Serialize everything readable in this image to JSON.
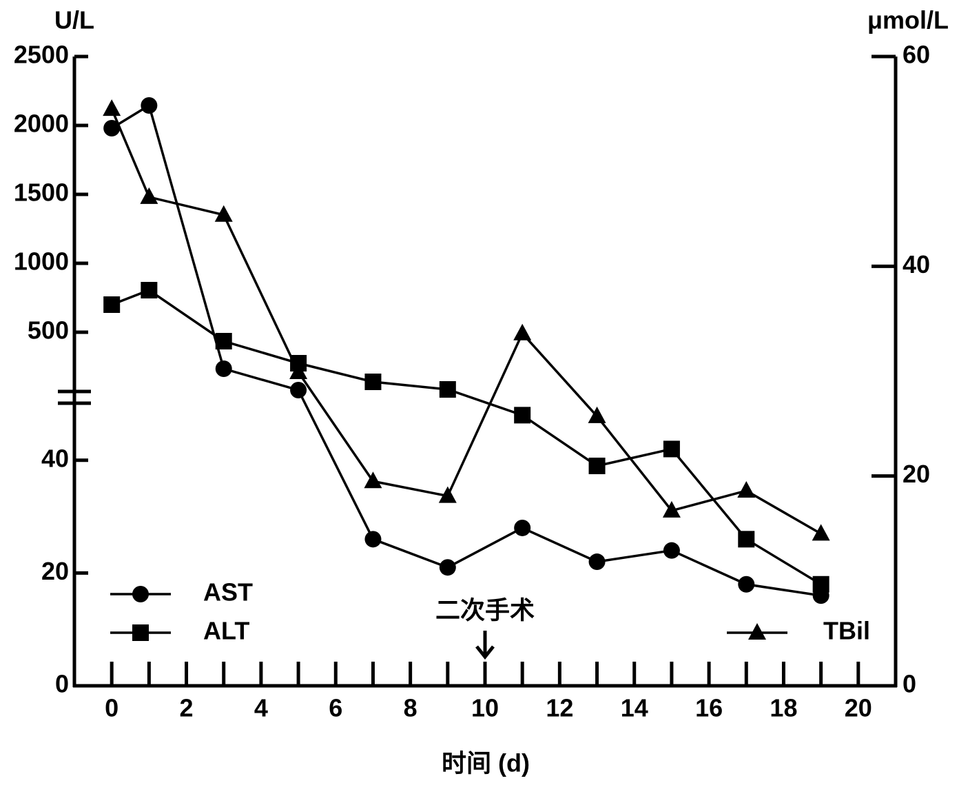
{
  "chart_data": {
    "type": "line",
    "y_title": "U/L",
    "y2_title": "μmol/L",
    "x_title": "时间 (d)",
    "annotation": {
      "text": "二次手术",
      "x": 10
    },
    "x": [
      0,
      1,
      3,
      5,
      7,
      9,
      11,
      13,
      15,
      17,
      19
    ],
    "xlim": [
      -1,
      21
    ],
    "xticks": [
      0,
      2,
      4,
      6,
      8,
      10,
      12,
      14,
      16,
      18,
      20
    ],
    "ylim_segments": [
      {
        "ylim": [
          0,
          50
        ],
        "yticks": [
          0,
          20,
          40
        ]
      },
      {
        "ylim": [
          50,
          2500
        ],
        "yticks": [
          500,
          1000,
          1500,
          2000,
          2500
        ]
      }
    ],
    "y2lim": [
      0,
      60
    ],
    "y2ticks": [
      0,
      20,
      40,
      60
    ],
    "series": [
      {
        "name": "AST",
        "color": "#000000",
        "marker": "circle",
        "legend": "left",
        "values": [
          1980,
          2145,
          235,
          80,
          26,
          21,
          28,
          22,
          24,
          18,
          16
        ]
      },
      {
        "name": "ALT",
        "color": "#000000",
        "marker": "square",
        "legend": "left",
        "values": [
          700,
          805,
          435,
          275,
          140,
          85,
          48,
          39,
          42,
          26,
          18
        ]
      },
      {
        "name": "TBil",
        "color": "#000000",
        "marker": "triangle",
        "legend": "right",
        "axis": "y2",
        "values": [
          55,
          46.6,
          44.9,
          29.9,
          19.5,
          18.1,
          33.6,
          25.7,
          16.7,
          18.6,
          14.5
        ]
      }
    ]
  }
}
